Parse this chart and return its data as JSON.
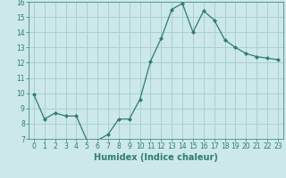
{
  "x": [
    0,
    1,
    2,
    3,
    4,
    5,
    6,
    7,
    8,
    9,
    10,
    11,
    12,
    13,
    14,
    15,
    16,
    17,
    18,
    19,
    20,
    21,
    22,
    23
  ],
  "y": [
    9.9,
    8.3,
    8.7,
    8.5,
    8.5,
    6.9,
    6.9,
    7.3,
    8.3,
    8.3,
    9.6,
    12.1,
    13.6,
    15.5,
    15.9,
    14.0,
    15.4,
    14.8,
    13.5,
    13.0,
    12.6,
    12.4,
    12.3,
    12.2
  ],
  "line_color": "#2e7d6e",
  "marker": "D",
  "marker_size": 2.0,
  "bg_color": "#cce8e8",
  "grid_color": "#aad0d0",
  "xlabel": "Humidex (Indice chaleur)",
  "ylim": [
    7,
    16
  ],
  "xlim": [
    -0.5,
    23.5
  ],
  "yticks": [
    7,
    8,
    9,
    10,
    11,
    12,
    13,
    14,
    15,
    16
  ],
  "xticks": [
    0,
    1,
    2,
    3,
    4,
    5,
    6,
    7,
    8,
    9,
    10,
    11,
    12,
    13,
    14,
    15,
    16,
    17,
    18,
    19,
    20,
    21,
    22,
    23
  ],
  "tick_fontsize": 5.5,
  "xlabel_fontsize": 7.0,
  "linewidth": 0.9
}
